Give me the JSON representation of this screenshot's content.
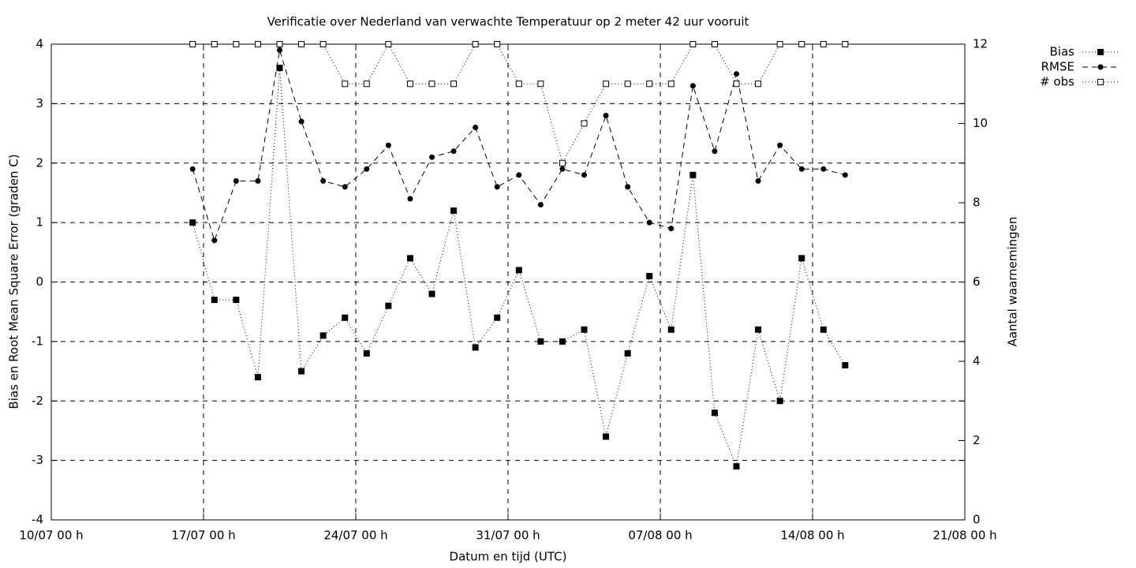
{
  "chart_data": {
    "type": "line",
    "title": "Verificatie over Nederland van verwachte Temperatuur op 2 meter 42 uur vooruit",
    "xlabel": "Datum en tijd (UTC)",
    "ylabel": "Bias en Root Mean Square Error (graden C)",
    "y2label": "Aantal waarnemingen",
    "x": [
      "16/07 12 h",
      "17/07 12 h",
      "18/07 12 h",
      "19/07 12 h",
      "20/07 12 h",
      "21/07 12 h",
      "22/07 12 h",
      "23/07 12 h",
      "24/07 12 h",
      "25/07 12 h",
      "26/07 12 h",
      "27/07 12 h",
      "28/07 12 h",
      "29/07 12 h",
      "30/07 12 h",
      "31/07 12 h",
      "01/08 12 h",
      "02/08 12 h",
      "03/08 12 h",
      "04/08 12 h",
      "05/08 12 h",
      "06/08 12 h",
      "07/08 12 h",
      "08/08 12 h",
      "09/08 12 h",
      "10/08 12 h",
      "11/08 12 h",
      "12/08 12 h",
      "13/08 12 h",
      "14/08 12 h",
      "15/08 12 h"
    ],
    "series": [
      {
        "name": "Bias",
        "color": "#000000",
        "dash": "dotted",
        "marker": "filled-square",
        "values": [
          1.0,
          -0.3,
          -0.3,
          -1.6,
          3.6,
          -1.5,
          -0.9,
          -0.6,
          -1.2,
          -0.4,
          0.4,
          -0.2,
          1.2,
          -1.1,
          -0.6,
          0.2,
          -1.0,
          -1.0,
          -0.8,
          -2.6,
          -1.2,
          0.1,
          -0.8,
          1.8,
          -2.2,
          -3.1,
          -0.8,
          -2.0,
          0.4,
          -0.8,
          -1.4
        ]
      },
      {
        "name": "RMSE",
        "color": "#000000",
        "dash": "dashed",
        "marker": "filled-circle",
        "values": [
          1.9,
          0.7,
          1.7,
          1.7,
          3.9,
          2.7,
          1.7,
          1.6,
          1.9,
          2.3,
          1.4,
          2.1,
          2.2,
          2.6,
          1.6,
          1.8,
          1.3,
          1.9,
          1.8,
          2.8,
          1.6,
          1.0,
          0.9,
          3.3,
          2.2,
          3.5,
          1.7,
          2.3,
          1.9,
          1.9,
          1.8
        ]
      },
      {
        "name": "# obs",
        "color": "#000000",
        "dash": "dotted",
        "marker": "open-square",
        "axis": "y2",
        "values": [
          12,
          12,
          12,
          12,
          12,
          12,
          12,
          11,
          11,
          12,
          11,
          11,
          11,
          12,
          12,
          11,
          11,
          9,
          10,
          11,
          11,
          11,
          11,
          12,
          12,
          11,
          11,
          12,
          12,
          12,
          12
        ]
      }
    ],
    "xlim": [
      "10/07 00 h",
      "21/08 00 h"
    ],
    "xticks": [
      "10/07 00 h",
      "17/07 00 h",
      "24/07 00 h",
      "31/07 00 h",
      "07/08 00 h",
      "14/08 00 h",
      "21/08 00 h"
    ],
    "ylim": [
      -4,
      4
    ],
    "yticks": [
      -4,
      -3,
      -2,
      -1,
      0,
      1,
      2,
      3,
      4
    ],
    "y2lim": [
      0,
      12
    ],
    "y2ticks": [
      0,
      2,
      4,
      6,
      8,
      10,
      12
    ],
    "grid": true,
    "legend": "top-right"
  }
}
